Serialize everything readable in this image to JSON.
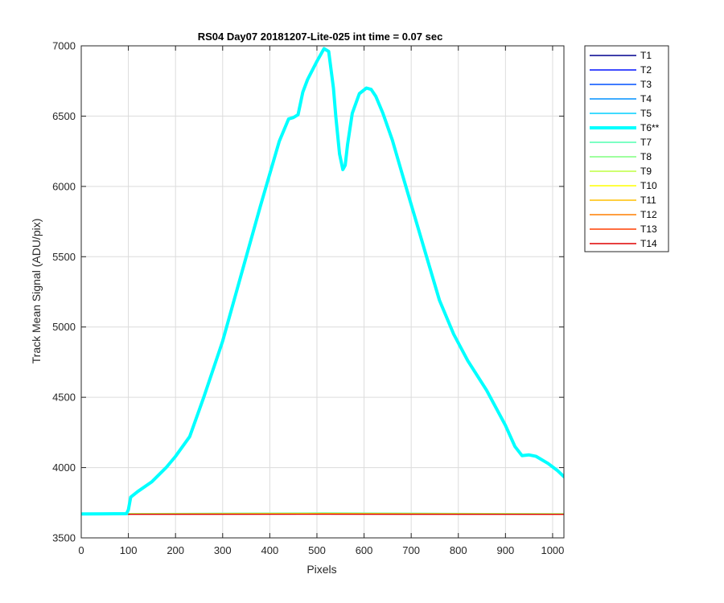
{
  "chart_data": {
    "type": "line",
    "title": "RS04 Day07 20181207-Lite-025 int time = 0.07 sec",
    "xlabel": "Pixels",
    "ylabel": "Track Mean Signal (ADU/pix)",
    "xlim": [
      0,
      1024
    ],
    "ylim": [
      3500,
      7000
    ],
    "xticks": [
      0,
      100,
      200,
      300,
      400,
      500,
      600,
      700,
      800,
      900,
      1000
    ],
    "yticks": [
      3500,
      4000,
      4500,
      5000,
      5500,
      6000,
      6500,
      7000
    ],
    "grid": true,
    "legend_position": "outside-right-top",
    "series": [
      {
        "name": "T1",
        "color": "#00008f",
        "highlight": false,
        "x": [
          0,
          512,
          1024
        ],
        "y": [
          3668,
          3669,
          3668
        ]
      },
      {
        "name": "T2",
        "color": "#0010ff",
        "highlight": false,
        "x": [
          0,
          512,
          1024
        ],
        "y": [
          3668,
          3670,
          3668
        ]
      },
      {
        "name": "T3",
        "color": "#0050ff",
        "highlight": false,
        "x": [
          0,
          512,
          1024
        ],
        "y": [
          3669,
          3670,
          3669
        ]
      },
      {
        "name": "T4",
        "color": "#0090ff",
        "highlight": false,
        "x": [
          0,
          512,
          1024
        ],
        "y": [
          3669,
          3671,
          3669
        ]
      },
      {
        "name": "T5",
        "color": "#00cfff",
        "highlight": false,
        "x": [
          0,
          512,
          1024
        ],
        "y": [
          3669,
          3672,
          3669
        ]
      },
      {
        "name": "T6**",
        "color": "#00ffff",
        "highlight": true,
        "x": [
          0,
          96,
          100,
          105,
          120,
          150,
          180,
          200,
          230,
          260,
          300,
          340,
          380,
          420,
          440,
          450,
          460,
          470,
          480,
          500,
          515,
          525,
          535,
          540,
          548,
          555,
          560,
          565,
          575,
          590,
          605,
          615,
          625,
          640,
          660,
          680,
          700,
          730,
          760,
          790,
          820,
          860,
          900,
          920,
          935,
          950,
          965,
          990,
          1010,
          1024
        ],
        "y": [
          3670,
          3672,
          3700,
          3790,
          3830,
          3900,
          4000,
          4080,
          4220,
          4500,
          4900,
          5380,
          5860,
          6320,
          6480,
          6490,
          6510,
          6670,
          6760,
          6890,
          6980,
          6960,
          6700,
          6500,
          6230,
          6120,
          6150,
          6300,
          6520,
          6660,
          6700,
          6690,
          6640,
          6520,
          6330,
          6100,
          5870,
          5530,
          5190,
          4950,
          4760,
          4550,
          4300,
          4150,
          4085,
          4090,
          4080,
          4030,
          3980,
          3935
        ]
      },
      {
        "name": "T7",
        "color": "#50ffaf",
        "highlight": false,
        "x": [
          0,
          512,
          1024
        ],
        "y": [
          3672,
          3678,
          3672
        ]
      },
      {
        "name": "T8",
        "color": "#7fff7f",
        "highlight": false,
        "x": [
          0,
          512,
          1024
        ],
        "y": [
          3671,
          3676,
          3671
        ]
      },
      {
        "name": "T9",
        "color": "#bfff40",
        "highlight": false,
        "x": [
          0,
          512,
          1024
        ],
        "y": [
          3670,
          3674,
          3670
        ]
      },
      {
        "name": "T10",
        "color": "#ffff00",
        "highlight": false,
        "x": [
          0,
          512,
          1024
        ],
        "y": [
          3669,
          3672,
          3669
        ]
      },
      {
        "name": "T11",
        "color": "#ffbf00",
        "highlight": false,
        "x": [
          0,
          512,
          1024
        ],
        "y": [
          3668,
          3670,
          3668
        ]
      },
      {
        "name": "T12",
        "color": "#ff7f00",
        "highlight": false,
        "x": [
          0,
          512,
          1024
        ],
        "y": [
          3668,
          3669,
          3668
        ]
      },
      {
        "name": "T13",
        "color": "#ff3f00",
        "highlight": false,
        "x": [
          0,
          512,
          1024
        ],
        "y": [
          3668,
          3669,
          3668
        ]
      },
      {
        "name": "T14",
        "color": "#df0000",
        "highlight": false,
        "x": [
          0,
          512,
          1024
        ],
        "y": [
          3668,
          3668,
          3668
        ]
      }
    ]
  }
}
